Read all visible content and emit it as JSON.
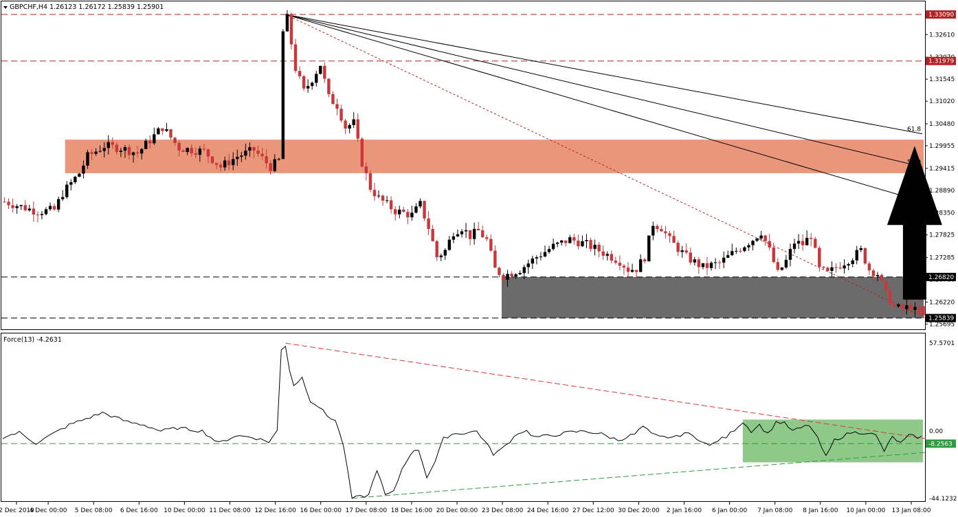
{
  "header": {
    "symbol_line": "GBPCHF,H4  1.26123 1.26172 1.25839 1.25901",
    "indicator_line": "Force(13) -4.2631"
  },
  "colors": {
    "bull": "#000000",
    "bear": "#c8373a",
    "resistance_zone": "#e9967a",
    "support_zone": "#6b6b6b",
    "force_zone": "#8fc98a",
    "level_line": "#b22222",
    "force_line": "#000000",
    "force_upper_trend": "#d63a3a",
    "force_lower_trend": "#2e9b3f",
    "arrow": "#000000"
  },
  "icons": {
    "symbol_dropdown": "triangle-down-icon",
    "signal_arrow": "up-arrow-icon"
  },
  "chart_data": [
    {
      "type": "candlestick",
      "symbol": "GBPCHF",
      "timeframe": "H4",
      "ohlc_last": {
        "open": 1.26123,
        "high": 1.26172,
        "low": 1.25839,
        "close": 1.25901
      },
      "ylim": [
        1.2557,
        1.3337
      ],
      "y_ticks": [
        "1.32610",
        "1.32070",
        "1.31545",
        "1.31020",
        "1.30480",
        "1.29955",
        "1.29415",
        "1.28890",
        "1.28350",
        "1.27825",
        "1.27285",
        "1.26760",
        "1.26220",
        "1.25695"
      ],
      "x_ticks": [
        "2 Dec 2019",
        "4 Dec 00:00",
        "5 Dec 08:00",
        "6 Dec 16:00",
        "10 Dec 00:00",
        "11 Dec 08:00",
        "12 Dec 16:00",
        "16 Dec 00:00",
        "17 Dec 08:00",
        "18 Dec 16:00",
        "20 Dec 00:00",
        "23 Dec 08:00",
        "24 Dec 16:00",
        "27 Dec 12:00",
        "30 Dec 20:00",
        "2 Jan 16:00",
        "6 Jan 00:00",
        "7 Jan 08:00",
        "8 Jan 16:00",
        "10 Jan 00:00",
        "13 Jan 08:00"
      ],
      "levels": [
        {
          "price": 1.3309,
          "label": "1.33090",
          "style": "dashed",
          "color": "#b22222"
        },
        {
          "price": 1.31979,
          "label": "1.31979",
          "style": "dashed",
          "color": "#b22222"
        },
        {
          "price": 1.2682,
          "label": "1.26820",
          "style": "dashed",
          "color": "#000000"
        },
        {
          "price": 1.25839,
          "label": "1.25839",
          "style": "dashed",
          "color": "#000000"
        }
      ],
      "zones": [
        {
          "name": "resistance",
          "from_price": 1.293,
          "to_price": 1.301,
          "from_bar": 15
        },
        {
          "name": "support",
          "from_price": 1.25839,
          "to_price": 1.2682,
          "from_bar": 120
        }
      ],
      "fib_fan": {
        "anchor": {
          "bar": 68,
          "price": 1.3309
        },
        "rays": [
          {
            "label": "61.8",
            "end_price": 1.3024
          },
          {
            "label": "50.0",
            "end_price": 1.2945
          },
          {
            "label": "",
            "end_price": 1.2862
          }
        ],
        "baseline_end": {
          "bar": 222,
          "price": 1.25839
        }
      },
      "signal_arrow": {
        "direction": "up",
        "bar": 218,
        "from_price": 1.2628,
        "to_price": 1.2995
      },
      "anchors": [
        [
          0,
          1.2862
        ],
        [
          8,
          1.2838
        ],
        [
          12,
          1.2842
        ],
        [
          14,
          1.2882
        ],
        [
          18,
          1.293
        ],
        [
          20,
          1.297
        ],
        [
          24,
          1.2995
        ],
        [
          28,
          1.299
        ],
        [
          32,
          1.2978
        ],
        [
          38,
          1.304
        ],
        [
          42,
          1.299
        ],
        [
          48,
          1.2982
        ],
        [
          52,
          1.2945
        ],
        [
          56,
          1.297
        ],
        [
          60,
          1.2985
        ],
        [
          64,
          1.2945
        ],
        [
          66,
          1.296
        ],
        [
          67,
          1.3268
        ],
        [
          68,
          1.33
        ],
        [
          70,
          1.318
        ],
        [
          72,
          1.3125
        ],
        [
          74,
          1.3155
        ],
        [
          76,
          1.319
        ],
        [
          78,
          1.311
        ],
        [
          80,
          1.3092
        ],
        [
          82,
          1.304
        ],
        [
          84,
          1.305
        ],
        [
          86,
          1.2955
        ],
        [
          88,
          1.2895
        ],
        [
          90,
          1.287
        ],
        [
          94,
          1.284
        ],
        [
          98,
          1.283
        ],
        [
          100,
          1.2855
        ],
        [
          102,
          1.28
        ],
        [
          104,
          1.273
        ],
        [
          106,
          1.2745
        ],
        [
          108,
          1.279
        ],
        [
          110,
          1.28
        ],
        [
          112,
          1.278
        ],
        [
          114,
          1.2792
        ],
        [
          116,
          1.277
        ],
        [
          118,
          1.27
        ],
        [
          120,
          1.2685
        ],
        [
          124,
          1.27
        ],
        [
          128,
          1.273
        ],
        [
          132,
          1.2755
        ],
        [
          136,
          1.2772
        ],
        [
          140,
          1.276
        ],
        [
          144,
          1.274
        ],
        [
          148,
          1.272
        ],
        [
          150,
          1.27
        ],
        [
          152,
          1.2702
        ],
        [
          154,
          1.273
        ],
        [
          156,
          1.281
        ],
        [
          158,
          1.28
        ],
        [
          160,
          1.277
        ],
        [
          164,
          1.273
        ],
        [
          168,
          1.2705
        ],
        [
          172,
          1.2715
        ],
        [
          176,
          1.2745
        ],
        [
          180,
          1.2772
        ],
        [
          182,
          1.279
        ],
        [
          184,
          1.2745
        ],
        [
          186,
          1.269
        ],
        [
          188,
          1.272
        ],
        [
          190,
          1.2765
        ],
        [
          192,
          1.276
        ],
        [
          194,
          1.2782
        ],
        [
          196,
          1.27
        ],
        [
          198,
          1.269
        ],
        [
          200,
          1.2705
        ],
        [
          204,
          1.273
        ],
        [
          206,
          1.2745
        ],
        [
          208,
          1.27
        ],
        [
          210,
          1.269
        ],
        [
          212,
          1.264
        ],
        [
          214,
          1.261
        ],
        [
          216,
          1.2605
        ],
        [
          218,
          1.2612
        ],
        [
          220,
          1.259
        ]
      ]
    },
    {
      "type": "line",
      "name": "Force(13)",
      "value": -4.2631,
      "ylim": [
        -44.1232,
        57.5701
      ],
      "y_ticks": [
        "57.5701",
        "0.00",
        "-44.1232"
      ],
      "levels": [
        {
          "value": -8.2563,
          "label": "-8.2563",
          "color": "#2e9b3f"
        }
      ],
      "zones": [
        {
          "name": "consolidation",
          "from_value": -20.5,
          "to_value": 7.5,
          "from_bar": 178
        }
      ],
      "trendlines": [
        {
          "name": "upper",
          "from": [
            68,
            57.5
          ],
          "to": [
            222,
            -5.0
          ]
        },
        {
          "name": "lower",
          "from": [
            84,
            -44.0
          ],
          "to": [
            222,
            -14.0
          ]
        }
      ],
      "anchors": [
        [
          0,
          -4
        ],
        [
          4,
          -1
        ],
        [
          8,
          -8
        ],
        [
          12,
          -2
        ],
        [
          16,
          4
        ],
        [
          20,
          8
        ],
        [
          22,
          10
        ],
        [
          24,
          12
        ],
        [
          26,
          10
        ],
        [
          30,
          6
        ],
        [
          34,
          4
        ],
        [
          38,
          0
        ],
        [
          42,
          2
        ],
        [
          48,
          0
        ],
        [
          52,
          -8
        ],
        [
          56,
          -3
        ],
        [
          60,
          -4
        ],
        [
          64,
          -7
        ],
        [
          66,
          0
        ],
        [
          67,
          53
        ],
        [
          68,
          56
        ],
        [
          69,
          40
        ],
        [
          70,
          30
        ],
        [
          72,
          35
        ],
        [
          74,
          20
        ],
        [
          76,
          16
        ],
        [
          78,
          10
        ],
        [
          80,
          7
        ],
        [
          82,
          -10
        ],
        [
          84,
          -44
        ],
        [
          88,
          -42
        ],
        [
          90,
          -25
        ],
        [
          92,
          -42
        ],
        [
          94,
          -40
        ],
        [
          96,
          -25
        ],
        [
          98,
          -15
        ],
        [
          100,
          -12
        ],
        [
          102,
          -30
        ],
        [
          104,
          -20
        ],
        [
          106,
          -5
        ],
        [
          108,
          -2
        ],
        [
          112,
          -1
        ],
        [
          114,
          0
        ],
        [
          116,
          -7
        ],
        [
          118,
          -15
        ],
        [
          120,
          -12
        ],
        [
          124,
          -1
        ],
        [
          126,
          0
        ],
        [
          128,
          -4
        ],
        [
          132,
          -3
        ],
        [
          136,
          -1
        ],
        [
          140,
          0
        ],
        [
          144,
          -2
        ],
        [
          148,
          -6
        ],
        [
          152,
          -2
        ],
        [
          154,
          3
        ],
        [
          156,
          -2
        ],
        [
          158,
          -4
        ],
        [
          162,
          -4
        ],
        [
          164,
          -1
        ],
        [
          168,
          -6
        ],
        [
          170,
          -10
        ],
        [
          172,
          -6
        ],
        [
          174,
          -4
        ],
        [
          176,
          1
        ],
        [
          178,
          6
        ],
        [
          180,
          0
        ],
        [
          182,
          4
        ],
        [
          184,
          -2
        ],
        [
          186,
          6
        ],
        [
          188,
          5
        ],
        [
          190,
          0
        ],
        [
          194,
          4
        ],
        [
          196,
          -5
        ],
        [
          198,
          -17
        ],
        [
          200,
          -6
        ],
        [
          204,
          -1
        ],
        [
          208,
          -1
        ],
        [
          210,
          -3
        ],
        [
          212,
          -13
        ],
        [
          214,
          -4
        ],
        [
          216,
          -8
        ],
        [
          218,
          -3
        ],
        [
          220,
          -4
        ]
      ]
    }
  ]
}
